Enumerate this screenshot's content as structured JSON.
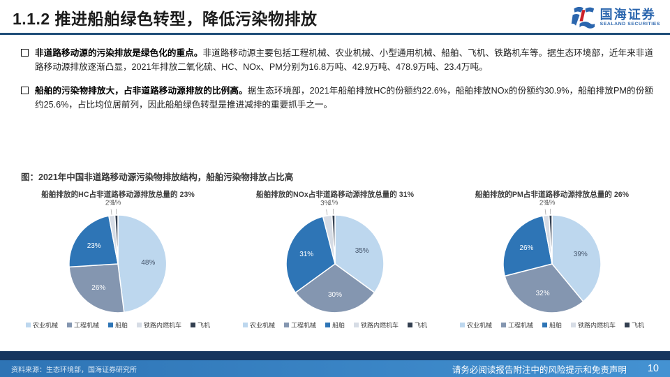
{
  "header": {
    "title": "1.1.2 推进船舶绿色转型，降低污染物排放",
    "logo_cn": "国海证券",
    "logo_en": "SEALAND SECURITIES"
  },
  "bullets": [
    {
      "lead": "非道路移动源的污染排放是绿色化的重点。",
      "body": "非道路移动源主要包括工程机械、农业机械、小型通用机械、船舶、飞机、铁路机车等。据生态环境部，近年来非道路移动源排放逐渐凸显，2021年排放二氧化硫、HC、NOx、PM分别为16.8万吨、42.9万吨、478.9万吨、23.4万吨。"
    },
    {
      "lead": "船舶的污染物排放大，占非道路移动源排放的比例高。",
      "body": "据生态环境部，2021年船舶排放HC的份额约22.6%，船舶排放NOx的份额约30.9%，船舶排放PM的份额约25.6%，占比均位居前列，因此船舶绿色转型是推进减排的重要抓手之一。"
    }
  ],
  "figure_caption": "图：2021年中国非道路移动源污染物排放结构，船舶污染物排放占比高",
  "chart_data": [
    {
      "type": "pie",
      "title": "船舶排放的HC占非道路移动源排放总量的 23%",
      "categories": [
        "农业机械",
        "工程机械",
        "船舶",
        "铁路内燃机车",
        "飞机"
      ],
      "values": [
        48,
        26,
        23,
        2,
        1
      ],
      "colors": [
        "#BDD7EE",
        "#8496B0",
        "#2E75B6",
        "#D6DCE5",
        "#333F50"
      ],
      "legend_position": "bottom"
    },
    {
      "type": "pie",
      "title": "船舶排放的NOx占非道路移动源排放总量的 31%",
      "categories": [
        "农业机械",
        "工程机械",
        "船舶",
        "铁路内燃机车",
        "飞机"
      ],
      "values": [
        35,
        30,
        31,
        3,
        1
      ],
      "colors": [
        "#BDD7EE",
        "#8496B0",
        "#2E75B6",
        "#D6DCE5",
        "#333F50"
      ],
      "legend_position": "bottom"
    },
    {
      "type": "pie",
      "title": "船舶排放的PM占非道路移动源排放总量的 26%",
      "categories": [
        "农业机械",
        "工程机械",
        "船舶",
        "铁路内燃机车",
        "飞机"
      ],
      "values": [
        39,
        32,
        26,
        2,
        1
      ],
      "colors": [
        "#BDD7EE",
        "#8496B0",
        "#2E75B6",
        "#D6DCE5",
        "#333F50"
      ],
      "legend_position": "bottom"
    }
  ],
  "footer": {
    "source": "资料来源：生态环境部，国海证券研究所",
    "disclaimer": "请务必阅读报告附注中的风险提示和免责声明",
    "page_number": "10"
  },
  "theme": {
    "divider_navy": "#1F4E79",
    "footer_dark": "#16355E",
    "footer_blue": "#2E74B5",
    "logo_blue": "#2B66AE",
    "logo_red": "#CC2229"
  }
}
